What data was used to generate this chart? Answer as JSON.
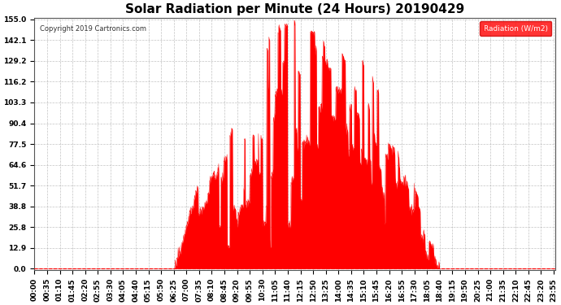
{
  "title": "Solar Radiation per Minute (24 Hours) 20190429",
  "copyright": "Copyright 2019 Cartronics.com",
  "legend_label": "Radiation (W/m2)",
  "yticks": [
    0.0,
    12.9,
    25.8,
    38.8,
    51.7,
    64.6,
    77.5,
    90.4,
    103.3,
    116.2,
    129.2,
    142.1,
    155.0
  ],
  "ylim_max": 155.0,
  "fill_color": "#ff0000",
  "background_color": "#ffffff",
  "grid_color": "#aaaaaa",
  "copyright_color": "#333333",
  "title_fontsize": 11,
  "tick_fontsize": 6.5
}
